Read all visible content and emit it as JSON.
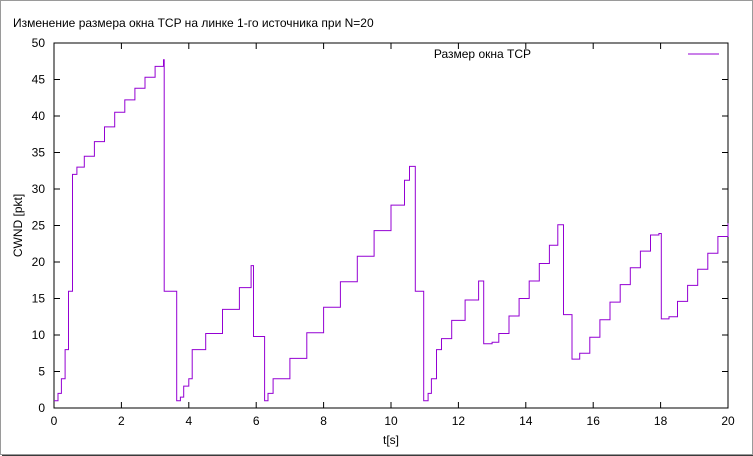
{
  "chart_data": {
    "type": "line",
    "title": "Изменение размера окна TCP на линке 1-го источника при N=20",
    "xlabel": "t[s]",
    "ylabel": "CWND [pkt]",
    "xlim": [
      0,
      20
    ],
    "ylim": [
      0,
      50
    ],
    "xticks": [
      "0",
      "2",
      "4",
      "6",
      "8",
      "10",
      "12",
      "14",
      "16",
      "18",
      "20"
    ],
    "yticks": [
      "0",
      "5",
      "10",
      "15",
      "20",
      "25",
      "30",
      "35",
      "40",
      "45",
      "50"
    ],
    "grid": false,
    "legend_position": "top-right",
    "line_style": "steps",
    "series": [
      {
        "name": "Размер окна TCP",
        "color": "#9400d3",
        "x": [
          0,
          0.12,
          0.22,
          0.33,
          0.43,
          0.55,
          0.68,
          0.9,
          1.2,
          1.5,
          1.8,
          2.1,
          2.4,
          2.7,
          3.0,
          3.25,
          3.27,
          3.62,
          3.64,
          3.75,
          3.85,
          4.0,
          4.1,
          4.5,
          5.0,
          5.5,
          5.85,
          5.92,
          6.2,
          6.25,
          6.35,
          6.5,
          7.0,
          7.5,
          8.0,
          8.5,
          9.0,
          9.5,
          10.0,
          10.4,
          10.55,
          10.7,
          10.72,
          10.95,
          10.97,
          11.1,
          11.2,
          11.35,
          11.5,
          11.8,
          12.2,
          12.6,
          12.68,
          12.75,
          13.0,
          13.2,
          13.5,
          13.8,
          14.1,
          14.4,
          14.7,
          14.95,
          15.1,
          15.12,
          15.35,
          15.37,
          15.6,
          15.9,
          16.2,
          16.5,
          16.8,
          17.1,
          17.4,
          17.7,
          17.95,
          18.0,
          18.02,
          18.25,
          18.5,
          18.8,
          19.1,
          19.4,
          19.7,
          20.0
        ],
        "y": [
          1,
          2,
          4,
          8,
          16,
          32,
          33,
          34.5,
          36.5,
          38.5,
          40.5,
          42.2,
          43.8,
          45.3,
          46.8,
          47.7,
          16,
          16,
          1,
          1.5,
          3,
          4,
          8,
          10.2,
          13.5,
          16.5,
          19.5,
          9.8,
          9.8,
          1,
          2,
          4,
          6.8,
          10.3,
          13.8,
          17.3,
          20.8,
          24.3,
          27.8,
          31.2,
          33.1,
          33.1,
          16,
          16,
          1,
          2,
          4,
          8,
          9.5,
          12,
          14.8,
          17.4,
          17.4,
          8.8,
          9,
          10.2,
          12.6,
          15.0,
          17.4,
          19.8,
          22.3,
          25.1,
          25.1,
          12.8,
          12.8,
          6.7,
          7.5,
          9.7,
          12.1,
          14.5,
          16.9,
          19.2,
          21.5,
          23.7,
          23.9,
          23.9,
          12.2,
          12.5,
          14.6,
          16.8,
          19.0,
          21.2,
          23.5,
          25.3
        ]
      }
    ]
  }
}
